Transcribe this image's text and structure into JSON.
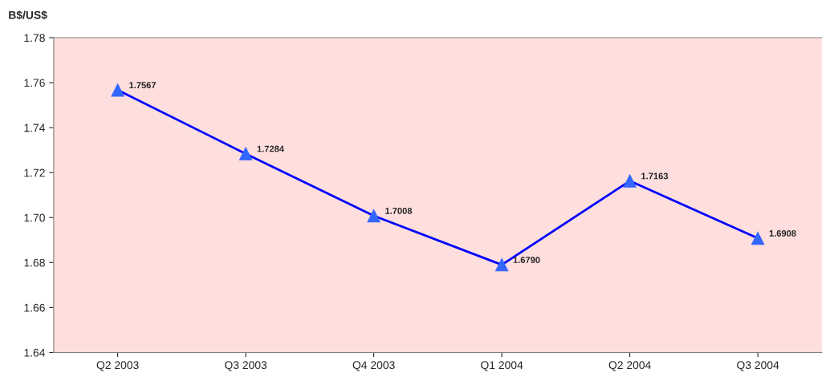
{
  "chart_data": {
    "type": "line",
    "ylabel": "B$/US$",
    "categories": [
      "Q2 2003",
      "Q3 2003",
      "Q4 2003",
      "Q1 2004",
      "Q2 2004",
      "Q3 2004"
    ],
    "series": [
      {
        "color": "#0000ff",
        "values": [
          1.7567,
          1.7284,
          1.7008,
          1.679,
          1.7163,
          1.6908
        ],
        "value_labels": [
          "1.7567",
          "1.7284",
          "1.7008",
          "1.6790",
          "1.7163",
          "1.6908"
        ]
      }
    ],
    "ylim": [
      1.64,
      1.78
    ],
    "yticks": [
      {
        "value": 1.64,
        "label": "1.64"
      },
      {
        "value": 1.66,
        "label": "1.66"
      },
      {
        "value": 1.68,
        "label": "1.68"
      },
      {
        "value": 1.7,
        "label": "1.70"
      },
      {
        "value": 1.72,
        "label": "1.72"
      },
      {
        "value": 1.74,
        "label": "1.74"
      },
      {
        "value": 1.76,
        "label": "1.76"
      },
      {
        "value": 1.78,
        "label": "1.78"
      }
    ],
    "marker": "triangle",
    "line_style": "solid",
    "grid": false,
    "legend": false
  }
}
